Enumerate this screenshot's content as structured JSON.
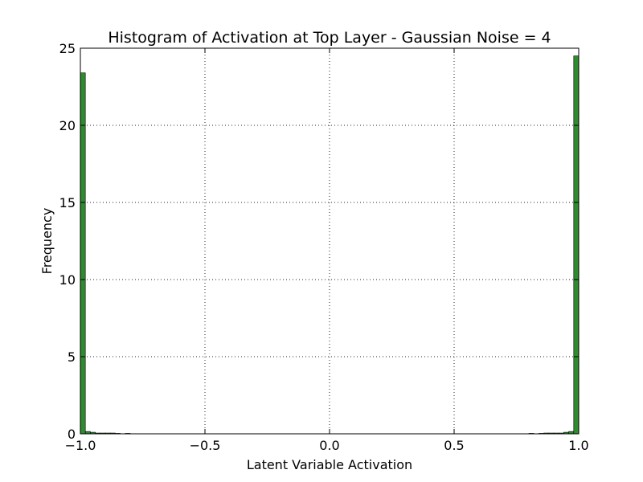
{
  "chart_data": {
    "type": "bar",
    "title": "Histogram of Activation at Top Layer - Gaussian Noise = 4",
    "xlabel": "Latent Variable Activation",
    "ylabel": "Frequency",
    "xlim": [
      -1.0,
      1.0
    ],
    "ylim": [
      0,
      25
    ],
    "grid": true,
    "bar_color": "#2e8b2e",
    "x_ticks": [
      -1.0,
      -0.5,
      0.0,
      0.5,
      1.0
    ],
    "x_tick_labels": [
      "−1.0",
      "−0.5",
      "0.0",
      "0.5",
      "1.0"
    ],
    "y_ticks": [
      0,
      5,
      10,
      15,
      20,
      25
    ],
    "y_tick_labels": [
      "0",
      "5",
      "10",
      "15",
      "20",
      "25"
    ],
    "bins": {
      "start": -1.0,
      "width": 0.02,
      "values": [
        23.4,
        0.15,
        0.1,
        0.05,
        0.05,
        0.05,
        0.05,
        0.03,
        0,
        0.03,
        0,
        0,
        0,
        0,
        0,
        0,
        0,
        0,
        0,
        0,
        0,
        0,
        0,
        0,
        0,
        0,
        0,
        0,
        0,
        0,
        0,
        0,
        0,
        0,
        0,
        0,
        0,
        0,
        0,
        0,
        0,
        0,
        0,
        0,
        0,
        0,
        0,
        0,
        0,
        0,
        0,
        0,
        0,
        0,
        0,
        0,
        0,
        0,
        0,
        0,
        0,
        0,
        0,
        0,
        0,
        0,
        0,
        0,
        0,
        0,
        0,
        0,
        0,
        0,
        0,
        0,
        0,
        0,
        0,
        0,
        0,
        0,
        0,
        0,
        0,
        0,
        0,
        0,
        0,
        0,
        0.03,
        0,
        0.03,
        0.05,
        0.05,
        0.05,
        0.05,
        0.1,
        0.15,
        24.5
      ]
    }
  }
}
